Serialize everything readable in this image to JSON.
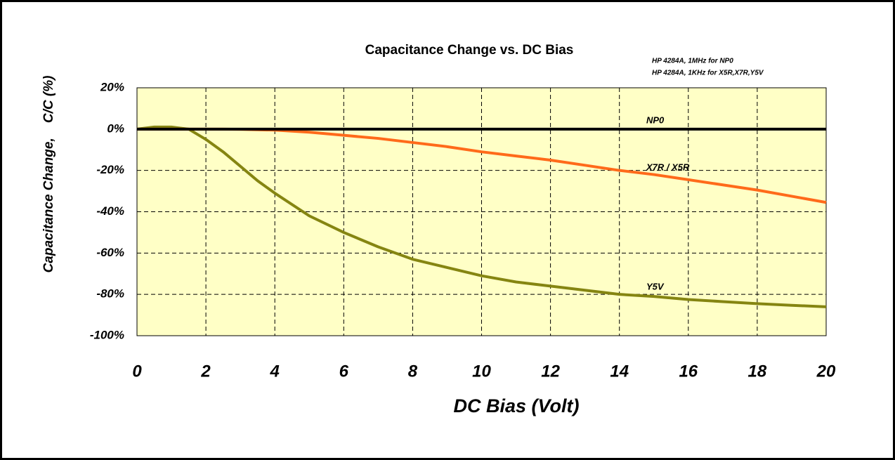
{
  "chart_data": {
    "type": "line",
    "title": "Capacitance Change vs. DC Bias",
    "subtitle": [
      "HP 4284A, 1MHz for NP0",
      "HP 4284A, 1KHz for X5R,X7R,Y5V"
    ],
    "x_label": "DC Bias (Volt)",
    "y_label": "Capacitance Change,    C/C (%)",
    "x": [
      0,
      0.5,
      1,
      1.5,
      2,
      2.5,
      3,
      3.5,
      4,
      5,
      6,
      7,
      8,
      9,
      10,
      11,
      12,
      13,
      14,
      15,
      16,
      17,
      18,
      19,
      20
    ],
    "series": [
      {
        "name": "NP0",
        "color": "#000000",
        "values": [
          0,
          0,
          0,
          0,
          0,
          0,
          0,
          0,
          0,
          0,
          0,
          0,
          0,
          0,
          0,
          0,
          0,
          0,
          0,
          0,
          0,
          0,
          0,
          0,
          0
        ]
      },
      {
        "name": "X7R / X5R",
        "color": "#ff6a1a",
        "values": [
          0,
          0,
          0,
          0,
          0,
          0,
          -0.1,
          -0.3,
          -0.5,
          -1.5,
          -3,
          -4.5,
          -6.5,
          -8.5,
          -11,
          -13,
          -15,
          -17.5,
          -20,
          -22,
          -24.5,
          -27,
          -29.5,
          -32.5,
          -35.5
        ]
      },
      {
        "name": "Y5V",
        "color": "#858511",
        "values": [
          0,
          1,
          1,
          0,
          -5,
          -11,
          -18,
          -25,
          -31,
          -42,
          -50,
          -57,
          -63,
          -67,
          -71,
          -74,
          -76,
          -78,
          -80,
          -81,
          -82.5,
          -83.5,
          -84.5,
          -85.3,
          -86
        ]
      }
    ],
    "xlim": [
      0,
      20
    ],
    "xticks": [
      0,
      2,
      4,
      6,
      8,
      10,
      12,
      14,
      16,
      18,
      20
    ],
    "ylim": [
      -100,
      20
    ],
    "yticks": [
      {
        "value": 20,
        "label": "20%"
      },
      {
        "value": 0,
        "label": "0%"
      },
      {
        "value": -20,
        "label": "-20%"
      },
      {
        "value": -40,
        "label": "-40%"
      },
      {
        "value": -60,
        "label": "-60%"
      },
      {
        "value": -80,
        "label": "-80%"
      },
      {
        "value": -100,
        "label": "-100%"
      }
    ],
    "grid": true,
    "plot_background": "#ffffc6"
  }
}
